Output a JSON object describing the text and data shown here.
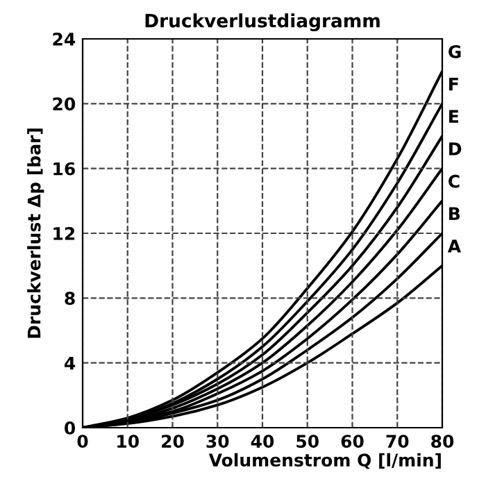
{
  "chart_data": {
    "type": "line",
    "title": "Druckverlustdiagramm",
    "xlabel": "Volumenstrom Q [l/min]",
    "ylabel": "Druckverlust Δp [bar]",
    "x": [
      0,
      10,
      20,
      30,
      40,
      50,
      60,
      70,
      80
    ],
    "series": [
      {
        "name": "A",
        "color": "#000000",
        "values": [
          0,
          0.25,
          0.7,
          1.4,
          2.5,
          4.0,
          5.8,
          7.7,
          10
        ]
      },
      {
        "name": "B",
        "color": "#000000",
        "values": [
          0,
          0.3,
          0.9,
          1.7,
          3.0,
          4.8,
          6.8,
          9.2,
          12
        ]
      },
      {
        "name": "C",
        "color": "#000000",
        "values": [
          0,
          0.4,
          1.0,
          2.1,
          3.5,
          5.5,
          7.9,
          10.7,
          14
        ]
      },
      {
        "name": "D",
        "color": "#000000",
        "values": [
          0,
          0.4,
          1.2,
          2.4,
          4.0,
          6.3,
          9.0,
          12.2,
          16
        ]
      },
      {
        "name": "E",
        "color": "#000000",
        "values": [
          0,
          0.5,
          1.4,
          2.7,
          4.5,
          7.1,
          10.0,
          13.6,
          18
        ]
      },
      {
        "name": "F",
        "color": "#000000",
        "values": [
          0,
          0.5,
          1.5,
          3.0,
          5.0,
          7.8,
          11.0,
          15.1,
          20
        ]
      },
      {
        "name": "G",
        "color": "#000000",
        "values": [
          0,
          0.6,
          1.7,
          3.4,
          5.5,
          8.6,
          12.1,
          16.6,
          22
        ]
      }
    ],
    "xlim": [
      0,
      80
    ],
    "ylim": [
      0,
      24
    ],
    "xticks": [
      0,
      10,
      20,
      30,
      40,
      50,
      60,
      70,
      80
    ],
    "yticks": [
      0,
      4,
      8,
      12,
      16,
      20,
      24
    ],
    "grid": true,
    "line_style": "solid",
    "marker": "none",
    "legend": false
  }
}
